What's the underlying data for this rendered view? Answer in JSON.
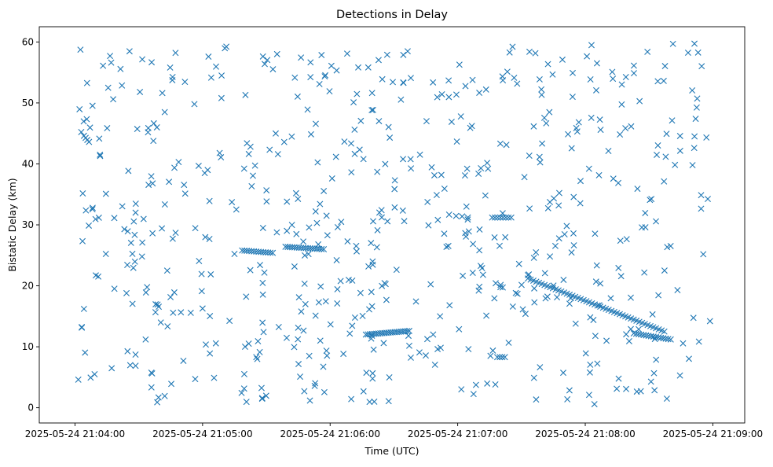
{
  "chart_data": {
    "type": "scatter",
    "title": "Detections in Delay",
    "xlabel": "Time (UTC)",
    "ylabel": "Bistatic Delay (km)",
    "marker": "x",
    "color": "#1f77b4",
    "xlim": [
      -0.28,
      5.25
    ],
    "ylim": [
      -2.5,
      62.5
    ],
    "xticks": [
      {
        "value": 0,
        "label": "2025-05-24 21:04:00"
      },
      {
        "value": 1,
        "label": "2025-05-24 21:05:00"
      },
      {
        "value": 2,
        "label": "2025-05-24 21:06:00"
      },
      {
        "value": 3,
        "label": "2025-05-24 21:07:00"
      },
      {
        "value": 4,
        "label": "2025-05-24 21:08:00"
      },
      {
        "value": 5,
        "label": "2025-05-24 21:09:00"
      }
    ],
    "yticks": [
      0,
      10,
      20,
      30,
      40,
      50,
      60
    ],
    "x_units": "minutes after 2025-05-24 21:04:00 UTC",
    "tracks": [
      {
        "x0": 1.31,
        "x1": 1.55,
        "y0": 25.8,
        "y1": 25.4,
        "n": 14
      },
      {
        "x0": 1.65,
        "x1": 1.95,
        "y0": 26.4,
        "y1": 26.0,
        "n": 18
      },
      {
        "x0": 2.28,
        "x1": 2.62,
        "y0": 12.0,
        "y1": 12.6,
        "n": 22
      },
      {
        "x0": 3.27,
        "x1": 3.42,
        "y0": 31.2,
        "y1": 31.2,
        "n": 8
      },
      {
        "x0": 3.55,
        "x1": 4.62,
        "y0": 21.2,
        "y1": 12.5,
        "n": 50
      },
      {
        "x0": 4.38,
        "x1": 4.67,
        "y0": 12.2,
        "y1": 11.2,
        "n": 16
      },
      {
        "x0": 3.31,
        "x1": 3.37,
        "y0": 8.3,
        "y1": 8.3,
        "n": 4
      },
      {
        "x0": 0.07,
        "x1": 0.11,
        "y0": 44.6,
        "y1": 43.6,
        "n": 4
      }
    ],
    "noise": {
      "count": 620,
      "x_range": [
        0,
        5
      ],
      "y_range": [
        0.5,
        59.8
      ],
      "seed": 20250524
    }
  }
}
